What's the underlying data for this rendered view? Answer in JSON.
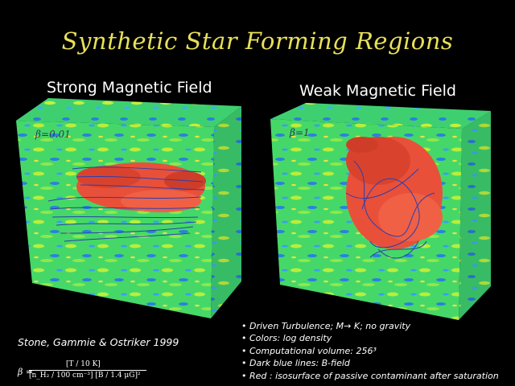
{
  "title": "Synthetic Star Forming Regions",
  "panels": [
    {
      "title": "Strong Magnetic Field",
      "beta": "β=0.01"
    },
    {
      "title": "Weak Magnetic Field",
      "beta": "β=1"
    }
  ],
  "citation": "Stone, Gammie & Ostriker 1999",
  "bullets": [
    "Driven Turbulence; M→ K; no gravity",
    "Colors: log density",
    "Computational volume: 256³",
    "Dark blue lines: B-field",
    "Red : isosurface of passive contaminant after saturation"
  ],
  "formula": {
    "lhs": "β =",
    "numerator": "[T / 10 K]",
    "denominator": "[n_H₂ / 100 cm⁻³] [B / 1.4 μG]²"
  },
  "colors": {
    "title": "#e8e05a",
    "field_base": "#3fd86a",
    "field_light": "#b6ee3a",
    "field_blue": "#2a7fe0",
    "contaminant": "#e8503a",
    "bfield": "#2a3fb0"
  }
}
